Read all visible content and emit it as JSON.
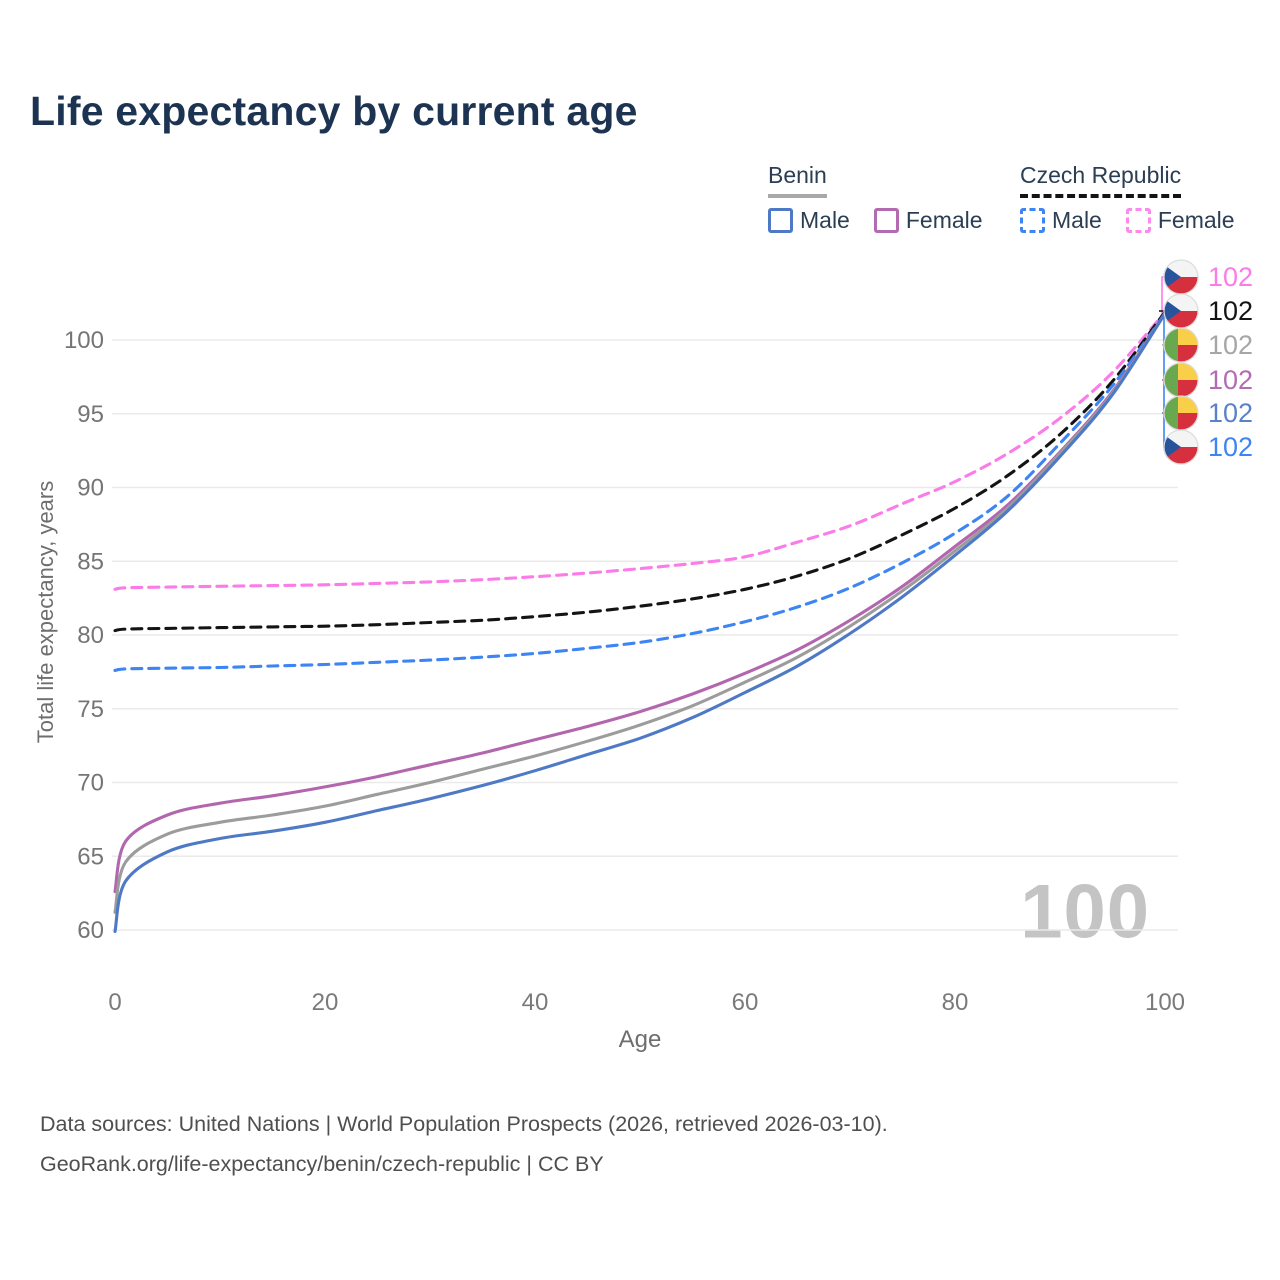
{
  "title": "Life expectancy by current age",
  "legend": {
    "benin": {
      "title": "Benin",
      "male_label": "Male",
      "female_label": "Female"
    },
    "czech": {
      "title": "Czech Republic",
      "male_label": "Male",
      "female_label": "Female"
    }
  },
  "watermark": "100",
  "footer": {
    "line1": "Data sources: United Nations | World Population Prospects (2026, retrieved 2026-03-10).",
    "line2": "GeoRank.org/life-expectancy/benin/czech-republic | CC BY"
  },
  "colors": {
    "title_text": "#1c3452",
    "grid": "#eaeaea",
    "tick_text": "#757575",
    "benin_male": "#4e79c5",
    "benin_female": "#b266ae",
    "benin_all": "#9c9c9c",
    "czech_male": "#3d85f2",
    "czech_female": "#fb7ce8",
    "czech_all": "#141414",
    "watermark": "#c4c4c4"
  },
  "chart_data": {
    "type": "line",
    "title": "Life expectancy by current age",
    "xlabel": "Age",
    "ylabel": "Total life expectancy, years",
    "xlim": [
      0,
      100
    ],
    "ylim": [
      58.5,
      103
    ],
    "xticks": [
      0,
      20,
      40,
      60,
      80,
      100
    ],
    "yticks": [
      60,
      65,
      70,
      75,
      80,
      85,
      90,
      95,
      100
    ],
    "grid": "horizontal-only",
    "legend_position": "top-right",
    "x": [
      0,
      1,
      5,
      10,
      15,
      20,
      25,
      30,
      35,
      40,
      45,
      50,
      55,
      60,
      65,
      70,
      75,
      80,
      85,
      90,
      95,
      100
    ],
    "series": [
      {
        "name": "Czech Republic Female",
        "country": "Czech Republic",
        "sex": "Female",
        "line": "dashed",
        "color": "#fb7ce8",
        "values": [
          83.1,
          83.2,
          83.25,
          83.3,
          83.35,
          83.4,
          83.5,
          83.6,
          83.75,
          83.95,
          84.2,
          84.5,
          84.85,
          85.3,
          86.3,
          87.4,
          88.9,
          90.4,
          92.3,
          94.7,
          97.8,
          101.9
        ]
      },
      {
        "name": "Czech Republic",
        "country": "Czech Republic",
        "sex": "Both",
        "line": "dashed",
        "color": "#141414",
        "values": [
          80.3,
          80.4,
          80.45,
          80.5,
          80.55,
          80.6,
          80.7,
          80.85,
          81.0,
          81.25,
          81.55,
          81.95,
          82.45,
          83.1,
          84.0,
          85.2,
          86.8,
          88.6,
          90.8,
          93.6,
          97.2,
          101.9
        ]
      },
      {
        "name": "Czech Republic Male",
        "country": "Czech Republic",
        "sex": "Male",
        "line": "dashed",
        "color": "#3d85f2",
        "values": [
          77.6,
          77.7,
          77.75,
          77.8,
          77.9,
          78.0,
          78.15,
          78.3,
          78.5,
          78.75,
          79.1,
          79.5,
          80.1,
          80.9,
          81.9,
          83.2,
          84.9,
          86.9,
          89.4,
          93.0,
          96.9,
          101.8
        ]
      },
      {
        "name": "Benin Female",
        "country": "Benin",
        "sex": "Female",
        "line": "solid",
        "color": "#b266ae",
        "values": [
          62.6,
          66.0,
          67.8,
          68.6,
          69.1,
          69.7,
          70.4,
          71.2,
          72.0,
          72.9,
          73.8,
          74.8,
          76.0,
          77.4,
          79.0,
          81.0,
          83.3,
          86.0,
          88.8,
          92.4,
          96.5,
          101.8
        ]
      },
      {
        "name": "Benin",
        "country": "Benin",
        "sex": "Both",
        "line": "solid",
        "color": "#9c9c9c",
        "values": [
          61.2,
          64.6,
          66.5,
          67.3,
          67.8,
          68.4,
          69.2,
          70.0,
          70.9,
          71.8,
          72.8,
          73.9,
          75.2,
          76.8,
          78.5,
          80.6,
          83.0,
          85.7,
          88.6,
          92.3,
          96.4,
          101.8
        ]
      },
      {
        "name": "Benin Male",
        "country": "Benin",
        "sex": "Male",
        "line": "solid",
        "color": "#4e79c5",
        "values": [
          59.9,
          63.3,
          65.3,
          66.2,
          66.7,
          67.3,
          68.1,
          68.9,
          69.8,
          70.8,
          71.9,
          73.0,
          74.4,
          76.1,
          77.9,
          80.1,
          82.6,
          85.4,
          88.4,
          92.1,
          96.3,
          101.8
        ]
      }
    ],
    "end_labels": [
      {
        "flag": "czech-republic",
        "series": "Czech Republic Female",
        "value": "102",
        "color": "#fb7ce8"
      },
      {
        "flag": "czech-republic",
        "series": "Czech Republic",
        "value": "102",
        "color": "#141414"
      },
      {
        "flag": "benin",
        "series": "Benin",
        "value": "102",
        "color": "#a6a6a6"
      },
      {
        "flag": "benin",
        "series": "Benin Female",
        "value": "102",
        "color": "#b06cb5"
      },
      {
        "flag": "benin",
        "series": "Benin Male",
        "value": "102",
        "color": "#5b82c8"
      },
      {
        "flag": "czech-republic",
        "series": "Czech Republic Male",
        "value": "102",
        "color": "#3d85f2"
      }
    ]
  }
}
